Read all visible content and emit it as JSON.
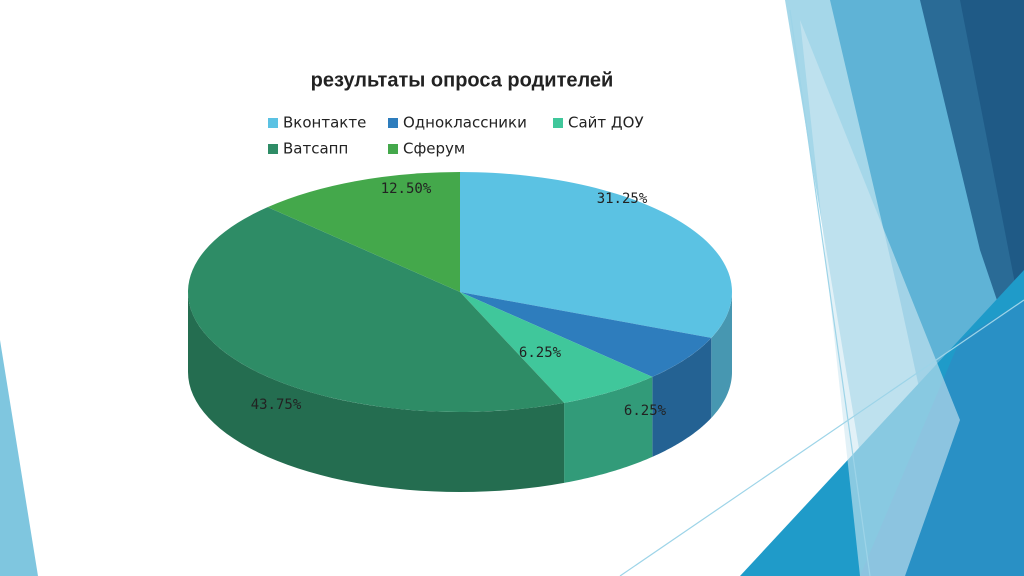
{
  "chart_data": {
    "type": "pie",
    "title": "результаты опроса родителей",
    "categories": [
      "Вконтакте",
      "Одноклассники",
      "Сайт ДОУ",
      "Ватсапп",
      "Сферум"
    ],
    "values": [
      31.25,
      6.25,
      6.25,
      43.75,
      12.5
    ],
    "value_labels": [
      "31.25%",
      "6.25%",
      "6.25%",
      "43.75%",
      "12.50%"
    ],
    "colors": [
      "#5bc2e3",
      "#2e7dbd",
      "#40c79b",
      "#2e8c66",
      "#44a84b"
    ],
    "legend": "top"
  }
}
